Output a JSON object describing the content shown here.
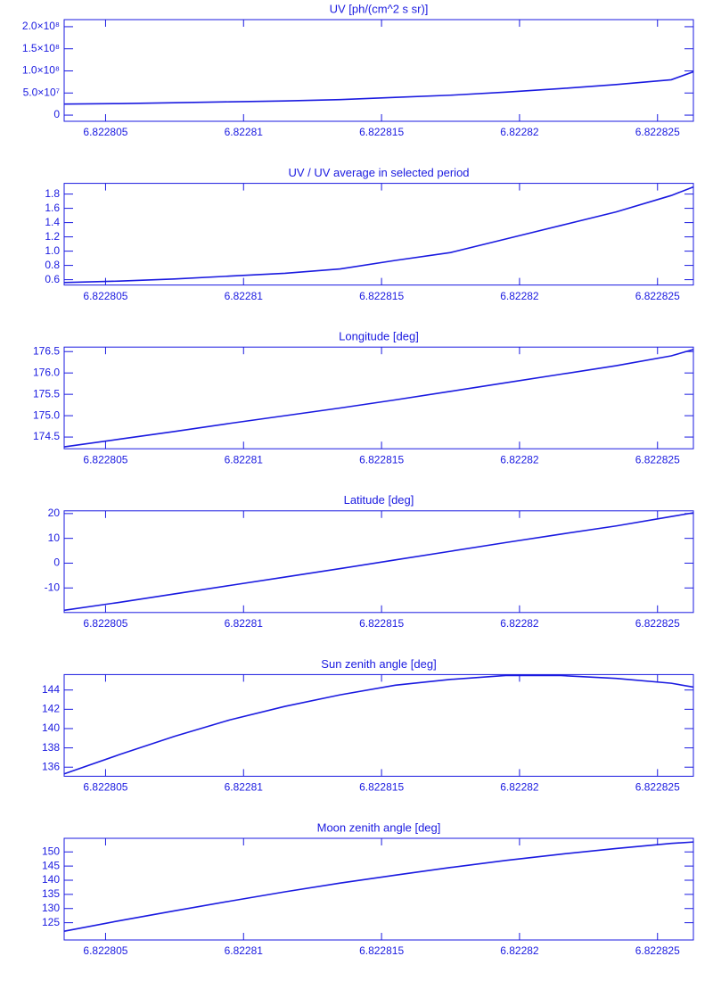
{
  "chart_data": [
    {
      "type": "line",
      "title": "UV [ph/(cm^2 s sr)]",
      "color": "#1a1ae0",
      "x": [
        6.8228035,
        6.8228055,
        6.8228075,
        6.8228095,
        6.8228115,
        6.8228135,
        6.8228155,
        6.8228175,
        6.8228195,
        6.8228215,
        6.8228235,
        6.8228255,
        6.8228263
      ],
      "values": [
        25000000,
        26000000,
        28000000,
        30000000,
        32000000,
        35000000,
        40000000,
        45000000,
        52000000,
        60000000,
        69000000,
        80000000,
        98000000
      ],
      "xlim": [
        6.8228035,
        6.8228263
      ],
      "xticks": [
        6.822805,
        6.82281,
        6.822815,
        6.82282,
        6.822825
      ],
      "ylim": [
        -14000000,
        216000000
      ],
      "yticks": [
        0,
        {
          "value": 50000000,
          "label": "5.0×10⁷"
        },
        {
          "value": 100000000,
          "label": "1.0×10⁸"
        },
        {
          "value": 150000000,
          "label": "1.5×10⁸"
        },
        {
          "value": 200000000,
          "label": "2.0×10⁸"
        }
      ]
    },
    {
      "type": "line",
      "title": "UV / UV average in selected period",
      "color": "#1a1ae0",
      "x": [
        6.8228035,
        6.8228055,
        6.8228075,
        6.8228095,
        6.8228115,
        6.8228135,
        6.8228155,
        6.8228175,
        6.8228195,
        6.8228215,
        6.8228235,
        6.8228255,
        6.8228263
      ],
      "values": [
        0.56,
        0.58,
        0.61,
        0.65,
        0.69,
        0.75,
        0.87,
        0.98,
        1.17,
        1.36,
        1.55,
        1.78,
        1.9
      ],
      "xlim": [
        6.8228035,
        6.8228263
      ],
      "xticks": [
        6.822805,
        6.82281,
        6.822815,
        6.82282,
        6.822825
      ],
      "ylim": [
        0.525,
        1.95
      ],
      "yticks": [
        0.6,
        0.8,
        {
          "value": 1,
          "label": "1.0"
        },
        1.2,
        1.4,
        1.6,
        1.8
      ]
    },
    {
      "type": "line",
      "title": "Longitude [deg]",
      "color": "#1a1ae0",
      "x": [
        6.8228035,
        6.8228055,
        6.8228075,
        6.8228095,
        6.8228115,
        6.8228135,
        6.8228155,
        6.8228175,
        6.8228195,
        6.8228215,
        6.8228235,
        6.8228255,
        6.8228263
      ],
      "values": [
        174.27,
        174.45,
        174.63,
        174.82,
        175.0,
        175.18,
        175.37,
        175.57,
        175.77,
        175.97,
        176.17,
        176.4,
        176.55
      ],
      "xlim": [
        6.8228035,
        6.8228263
      ],
      "xticks": [
        6.822805,
        6.82281,
        6.822815,
        6.82282,
        6.822825
      ],
      "ylim": [
        174.226,
        176.605
      ],
      "yticks": [
        174.5,
        {
          "value": 175,
          "label": "175.0"
        },
        175.5,
        {
          "value": 176,
          "label": "176.0"
        },
        176.5
      ]
    },
    {
      "type": "line",
      "title": "Latitude [deg]",
      "color": "#1a1ae0",
      "x": [
        6.8228035,
        6.8228055,
        6.8228075,
        6.8228095,
        6.8228115,
        6.8228135,
        6.8228155,
        6.8228175,
        6.8228195,
        6.8228215,
        6.8228235,
        6.8228255,
        6.8228263
      ],
      "values": [
        -19,
        -15.8,
        -12.4,
        -9.0,
        -5.6,
        -2.2,
        1.3,
        4.8,
        8.3,
        11.7,
        15.0,
        18.8,
        20.3
      ],
      "xlim": [
        6.8228035,
        6.8228263
      ],
      "xticks": [
        6.822805,
        6.82281,
        6.822815,
        6.82282,
        6.822825
      ],
      "ylim": [
        -19.9,
        21.1
      ],
      "yticks": [
        -10,
        0,
        10,
        20
      ]
    },
    {
      "type": "line",
      "title": "Sun zenith angle [deg]",
      "color": "#1a1ae0",
      "x": [
        6.8228035,
        6.8228055,
        6.8228075,
        6.8228095,
        6.8228115,
        6.8228135,
        6.8228155,
        6.8228175,
        6.8228195,
        6.8228215,
        6.8228235,
        6.8228255,
        6.8228263
      ],
      "values": [
        135.3,
        137.3,
        139.2,
        140.9,
        142.3,
        143.5,
        144.5,
        145.1,
        145.5,
        145.5,
        145.2,
        144.7,
        144.3
      ],
      "xlim": [
        6.8228035,
        6.8228263
      ],
      "xticks": [
        6.822805,
        6.82281,
        6.822815,
        6.82282,
        6.822825
      ],
      "ylim": [
        135.06,
        145.6
      ],
      "yticks": [
        136,
        138,
        140,
        142,
        144
      ]
    },
    {
      "type": "line",
      "title": "Moon zenith angle [deg]",
      "color": "#1a1ae0",
      "x": [
        6.8228035,
        6.8228055,
        6.8228075,
        6.8228095,
        6.8228115,
        6.8228135,
        6.8228155,
        6.8228175,
        6.8228195,
        6.8228215,
        6.8228235,
        6.8228255,
        6.8228263
      ],
      "values": [
        122,
        125.7,
        129.2,
        132.6,
        135.9,
        139.0,
        141.8,
        144.5,
        147.0,
        149.2,
        151.2,
        153.0,
        153.5
      ],
      "xlim": [
        6.8228035,
        6.8228263
      ],
      "xticks": [
        6.822805,
        6.82281,
        6.822815,
        6.82282,
        6.822825
      ],
      "ylim": [
        118.9,
        154.8
      ],
      "yticks": [
        125,
        130,
        135,
        140,
        145,
        150
      ]
    }
  ]
}
